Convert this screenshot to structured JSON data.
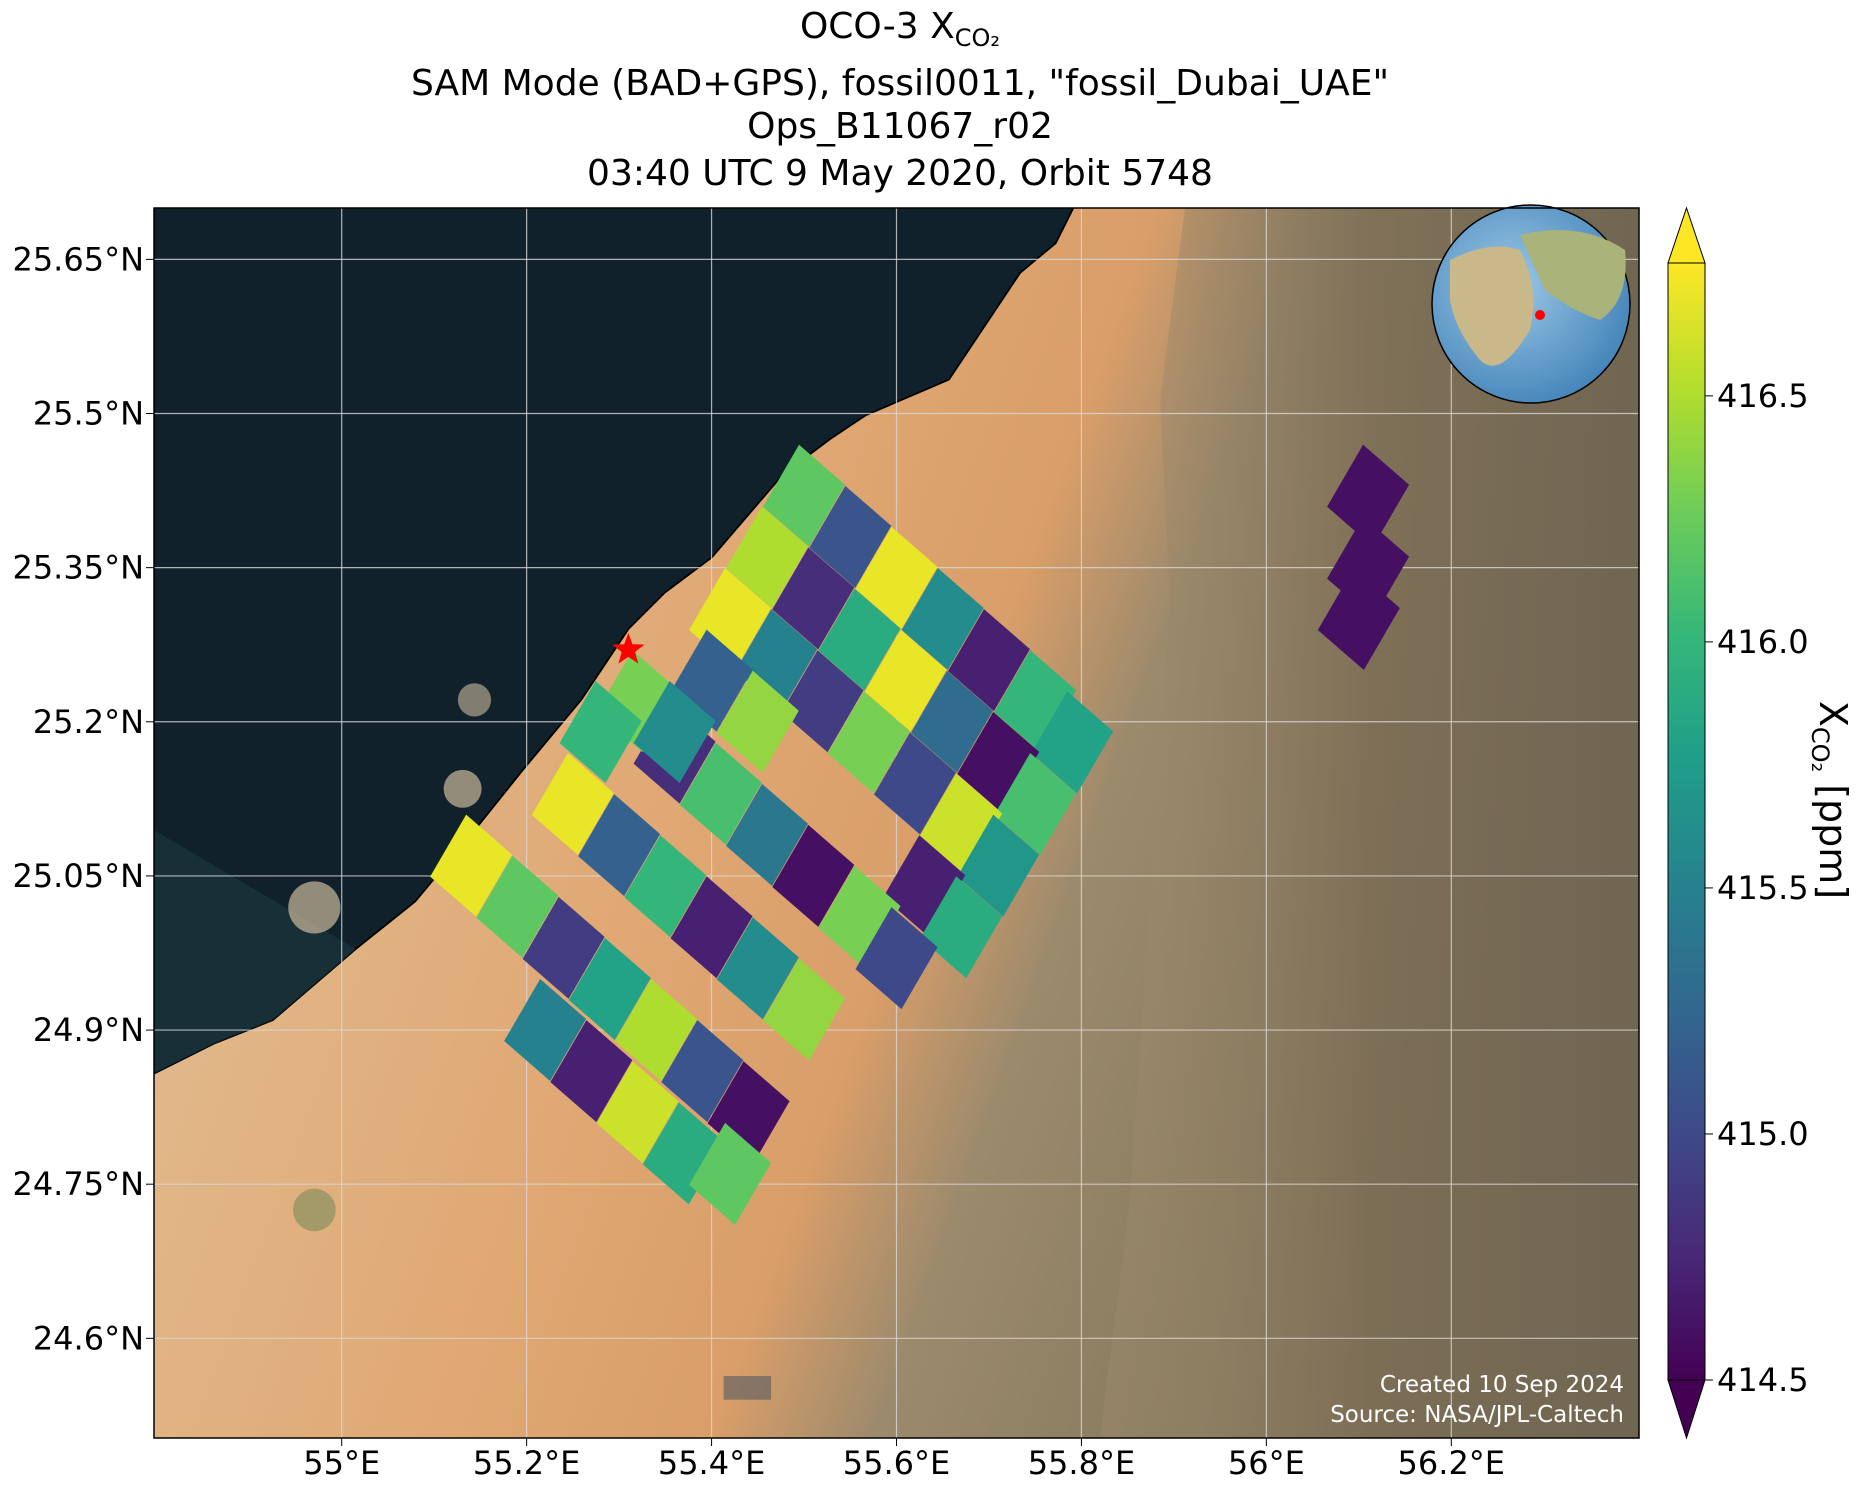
{
  "chart_data": {
    "type": "map",
    "title": [
      "OCO-3 X",
      "SAM Mode (BAD+GPS), fossil0011, \"fossil_Dubai_UAE\"",
      "Ops_B11067_r02",
      "03:40 UTC 9 May 2020, Orbit 5748"
    ],
    "title_subscript": "CO₂",
    "xlim": [
      54.797,
      56.403
    ],
    "ylim": [
      24.503,
      25.7
    ],
    "xticks": [
      {
        "value": 55.0,
        "label": "55°E"
      },
      {
        "value": 55.2,
        "label": "55.2°E"
      },
      {
        "value": 55.4,
        "label": "55.4°E"
      },
      {
        "value": 55.6,
        "label": "55.6°E"
      },
      {
        "value": 55.8,
        "label": "55.8°E"
      },
      {
        "value": 56.0,
        "label": "56°E"
      },
      {
        "value": 56.2,
        "label": "56.2°E"
      }
    ],
    "yticks": [
      {
        "value": 24.6,
        "label": "24.6°N"
      },
      {
        "value": 24.75,
        "label": "24.75°N"
      },
      {
        "value": 24.9,
        "label": "24.9°N"
      },
      {
        "value": 25.05,
        "label": "25.05°N"
      },
      {
        "value": 25.2,
        "label": "25.2°N"
      },
      {
        "value": 25.35,
        "label": "25.35°N"
      },
      {
        "value": 25.5,
        "label": "25.5°N"
      },
      {
        "value": 25.65,
        "label": "25.65°N"
      }
    ],
    "grid": true,
    "colormap": "viridis",
    "clim": [
      414.5,
      416.77
    ],
    "cticks": [
      414.5,
      415.0,
      415.5,
      416.0,
      416.5
    ],
    "colorbar_label": "X",
    "colorbar_label_subscript": "CO₂",
    "colorbar_label_unit": "[ppm]",
    "target": {
      "lon": 55.31,
      "lat": 25.27,
      "color": "#ff0000"
    },
    "soundings": {
      "lon": [
        55.5,
        55.55,
        55.6,
        55.65,
        55.7,
        55.75,
        55.79,
        55.46,
        55.51,
        55.56,
        55.61,
        55.66,
        55.71,
        55.75,
        55.42,
        55.47,
        55.52,
        55.57,
        55.62,
        55.67,
        55.71,
        55.4,
        55.45,
        55.63,
        55.67,
        55.36,
        55.41,
        55.46,
        55.51,
        55.56,
        55.6,
        55.25,
        55.3,
        55.35,
        55.4,
        55.45,
        55.5,
        55.14,
        55.19,
        55.24,
        55.29,
        55.34,
        55.39,
        55.44,
        55.22,
        55.27,
        55.32,
        55.37,
        55.42,
        55.32,
        55.36,
        55.28,
        56.11,
        56.11,
        56.1
      ],
      "lat": [
        25.42,
        25.38,
        25.34,
        25.3,
        25.26,
        25.22,
        25.18,
        25.36,
        25.32,
        25.28,
        25.24,
        25.2,
        25.16,
        25.12,
        25.3,
        25.26,
        25.22,
        25.18,
        25.14,
        25.1,
        25.06,
        25.24,
        25.2,
        25.04,
        25.0,
        25.17,
        25.13,
        25.09,
        25.05,
        25.01,
        24.97,
        25.12,
        25.08,
        25.04,
        25.0,
        24.96,
        24.92,
        25.06,
        25.02,
        24.98,
        24.94,
        24.9,
        24.86,
        24.82,
        24.9,
        24.86,
        24.82,
        24.78,
        24.76,
        25.22,
        25.19,
        25.19,
        25.42,
        25.35,
        25.3
      ],
      "xco2": [
        416.2,
        415.1,
        416.7,
        415.6,
        414.7,
        416.0,
        415.8,
        416.5,
        414.8,
        415.9,
        416.7,
        415.3,
        414.6,
        416.1,
        416.7,
        415.5,
        414.9,
        416.3,
        415.0,
        416.6,
        415.7,
        415.2,
        416.4,
        414.7,
        415.9,
        414.8,
        416.1,
        415.4,
        414.6,
        416.3,
        415.0,
        416.7,
        415.2,
        416.0,
        414.7,
        415.6,
        416.4,
        416.7,
        416.2,
        414.9,
        415.8,
        416.5,
        415.1,
        414.6,
        415.5,
        414.7,
        416.6,
        415.9,
        416.2,
        416.3,
        415.6,
        416.0,
        414.6,
        414.6,
        414.6
      ]
    },
    "credits": [
      "Created 10 Sep 2024",
      "Source: NASA/JPL-Caltech"
    ]
  }
}
